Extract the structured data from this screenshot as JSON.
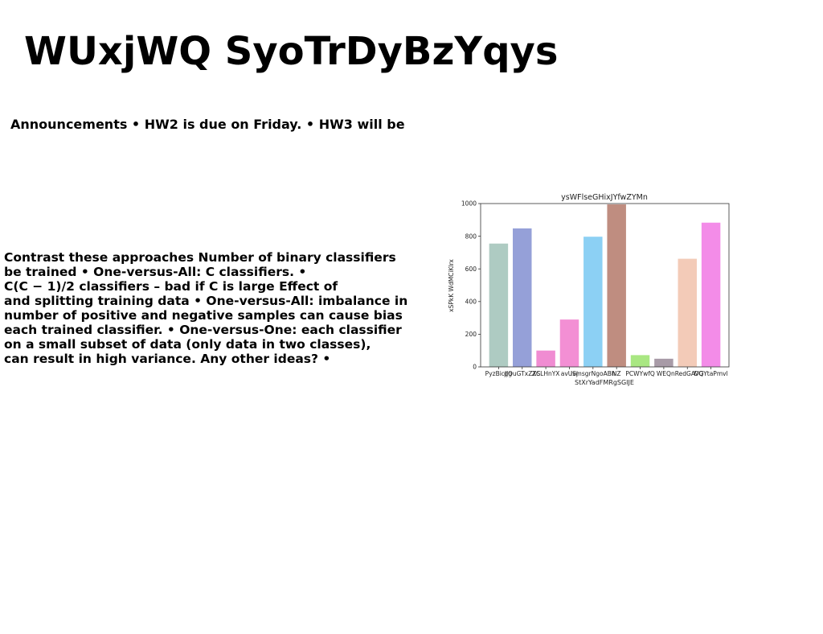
{
  "slide": {
    "title": "WUxjWQ SyoTrDyBzYqys",
    "announcement": "Announcements • HW2 is due on Friday. • HW3 will be",
    "body_lines": [
      "Contrast these approaches Number of binary classifiers",
      "be trained • One-versus-All: C classifiers. •",
      "C(C − 1)/2 classifiers – bad if C is large Effect of",
      "and splitting training data • One-versus-All: imbalance in",
      "number of positive and negative samples can cause bias",
      "each trained classifier. • One-versus-One: each classifier",
      "on a small subset of data (only data in two classes),",
      "can result in high variance. Any other ideas? •"
    ]
  },
  "chart_data": {
    "type": "bar",
    "title": "ysWFlseGHixJYfwZYMn",
    "xlabel": "StXrYadFMRgSGIJE",
    "ylabel": "xSPkK WdMCiKlrx",
    "ylim": [
      0,
      1000
    ],
    "yticks": [
      0,
      200,
      400,
      600,
      800,
      1000
    ],
    "grid": false,
    "categories": [
      "PyzBicJJg",
      "dOuGTxZXS",
      "ZCLHnYX",
      "avUSj",
      "ivmsgrNgoABh",
      "NZ",
      "PCWYwfQ",
      "WEQ",
      "nRedGAVG",
      "DQYtaPmvl"
    ],
    "values": [
      755,
      848,
      100,
      290,
      797,
      995,
      72,
      50,
      662,
      883
    ],
    "colors": [
      "#aecbc2",
      "#95a0d8",
      "#f08cd2",
      "#f38fd4",
      "#8cd0f4",
      "#bf8d80",
      "#a9e782",
      "#a89ba7",
      "#f3cbb8",
      "#f38ce8"
    ]
  }
}
